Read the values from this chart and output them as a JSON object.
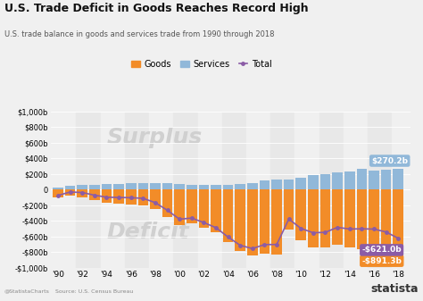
{
  "title": "U.S. Trade Deficit in Goods Reaches Record High",
  "subtitle": "U.S. trade balance in goods and services trade from 1990 through 2018",
  "source": "Source: U.S. Census Bureau",
  "years": [
    1990,
    1991,
    1992,
    1993,
    1994,
    1995,
    1996,
    1997,
    1998,
    1999,
    2000,
    2001,
    2002,
    2003,
    2004,
    2005,
    2006,
    2007,
    2008,
    2009,
    2010,
    2011,
    2012,
    2013,
    2014,
    2015,
    2016,
    2017,
    2018
  ],
  "goods": [
    -101,
    -76,
    -96,
    -133,
    -166,
    -174,
    -191,
    -198,
    -248,
    -346,
    -452,
    -427,
    -482,
    -541,
    -665,
    -782,
    -838,
    -821,
    -832,
    -508,
    -647,
    -738,
    -741,
    -702,
    -736,
    -763,
    -752,
    -796,
    -891.3
  ],
  "services": [
    27,
    46,
    59,
    62,
    69,
    74,
    88,
    87,
    82,
    82,
    74,
    64,
    61,
    55,
    59,
    70,
    85,
    119,
    131,
    132,
    151,
    187,
    195,
    220,
    233,
    262,
    248,
    255,
    270.2
  ],
  "total": [
    -74,
    -30,
    -37,
    -71,
    -97,
    -100,
    -103,
    -111,
    -166,
    -264,
    -378,
    -363,
    -421,
    -486,
    -606,
    -712,
    -753,
    -702,
    -701,
    -376,
    -496,
    -551,
    -546,
    -482,
    -503,
    -501,
    -504,
    -541,
    -621.0
  ],
  "goods_color": "#f28c28",
  "services_color": "#91b8d9",
  "total_color": "#8b5ca6",
  "bg_color": "#f0f0f0",
  "stripe_color_odd": "#e8e8e8",
  "stripe_color_even": "#f0f0f0",
  "surplus_text_color": "#d0d0d0",
  "deficit_text_color": "#d0d0d0",
  "annotation_goods_val": "-$891.3b",
  "annotation_services_val": "$270.2b",
  "annotation_total_val": "-$621.0b",
  "ylim": [
    -1000,
    1000
  ],
  "yticks": [
    -1000,
    -800,
    -600,
    -400,
    -200,
    0,
    200,
    400,
    600,
    800,
    1000
  ]
}
